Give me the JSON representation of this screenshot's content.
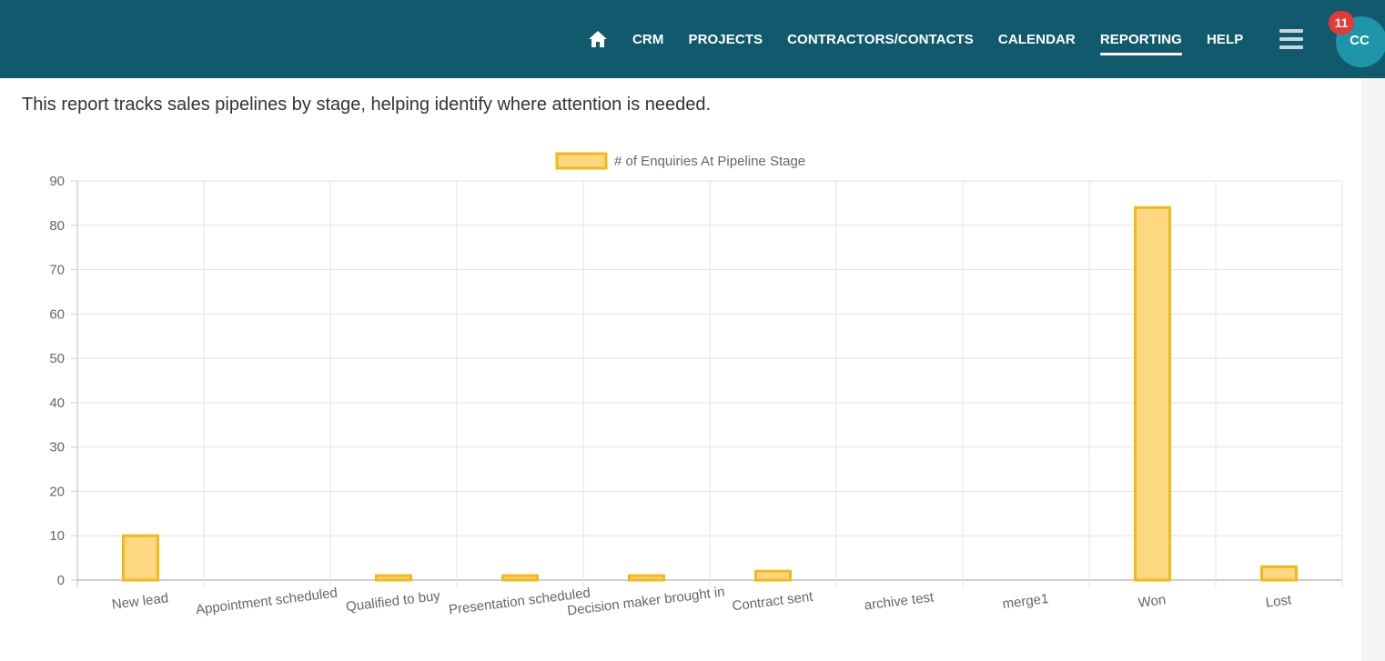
{
  "nav": {
    "items": [
      {
        "label": "CRM",
        "active": false
      },
      {
        "label": "PROJECTS",
        "active": false
      },
      {
        "label": "CONTRACTORS/CONTACTS",
        "active": false
      },
      {
        "label": "CALENDAR",
        "active": false
      },
      {
        "label": "REPORTING",
        "active": true
      },
      {
        "label": "HELP",
        "active": false
      }
    ],
    "home_icon": "home-icon",
    "menu_icon": "hamburger-menu-icon"
  },
  "user": {
    "initials": "CC",
    "notification_count": "11"
  },
  "colors": {
    "topbar": "#115a6e",
    "bar_fill": "#fdd882",
    "bar_border": "#f5b819",
    "badge": "#e53935",
    "avatar": "#1e95a8"
  },
  "report": {
    "description": "This report tracks sales pipelines by stage, helping identify where attention is needed."
  },
  "chart_data": {
    "type": "bar",
    "categories": [
      "New lead",
      "Appointment scheduled",
      "Qualified to buy",
      "Presentation scheduled",
      "Decision maker brought in",
      "Contract sent",
      "archive test",
      "merge1",
      "Won",
      "Lost"
    ],
    "series": [
      {
        "name": "# of Enquiries At Pipeline Stage",
        "values": [
          10,
          0,
          1,
          1,
          1,
          2,
          0,
          0,
          84,
          3
        ]
      }
    ],
    "ylim": [
      0,
      90
    ],
    "yticks": [
      "0",
      "10",
      "20",
      "30",
      "40",
      "50",
      "60",
      "70",
      "80",
      "90"
    ],
    "grid": true,
    "legend": "top-center"
  }
}
